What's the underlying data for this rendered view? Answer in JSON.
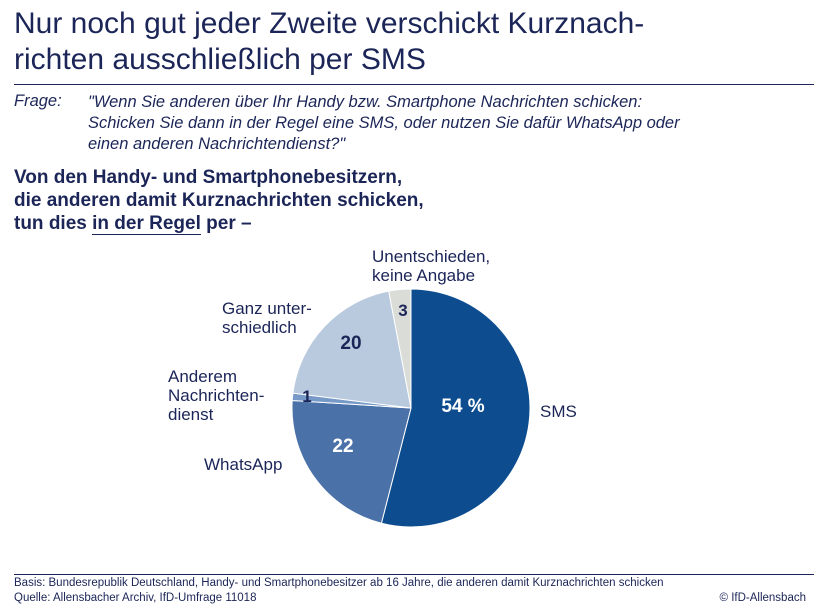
{
  "title_lines": [
    "Nur noch gut jeder Zweite verschickt Kurznach-",
    "richten ausschließlich per SMS"
  ],
  "question": {
    "label": "Frage:",
    "lines": [
      "\"Wenn Sie anderen über Ihr Handy bzw. Smartphone Nachrichten schicken:",
      "Schicken Sie dann in der Regel eine SMS, oder nutzen Sie dafür WhatsApp oder",
      "einen anderen Nachrichtendienst?\""
    ]
  },
  "subtitle": {
    "line1": "Von den Handy- und Smartphonebesitzern,",
    "line2": "die anderen damit Kurznachrichten schicken,",
    "line3_pre": "tun dies ",
    "line3_underlined": "in der Regel",
    "line3_post": " per –"
  },
  "chart_data": {
    "type": "pie",
    "unit": "%",
    "start": "top, clockwise",
    "slices": [
      {
        "label": "SMS",
        "value": 54,
        "value_label": "54 %",
        "color": "#0d4c8f",
        "text_color": "#ffffff"
      },
      {
        "label": "WhatsApp",
        "value": 22,
        "value_label": "22",
        "color": "#4a72a9",
        "text_color": "#ffffff"
      },
      {
        "label": "Anderem Nachrichten-dienst",
        "label_lines": [
          "Anderem",
          "Nachrichten-",
          "dienst"
        ],
        "value": 1,
        "value_label": "1",
        "color": "#7799c8",
        "text_color": "#1b2557"
      },
      {
        "label": "Ganz unter-schiedlich",
        "label_lines": [
          "Ganz unter-",
          "schiedlich"
        ],
        "value": 20,
        "value_label": "20",
        "color": "#b9c9de",
        "text_color": "#1b2557"
      },
      {
        "label": "Unentschieden, keine Angabe",
        "label_lines": [
          "Unentschieden,",
          "keine Angabe"
        ],
        "value": 3,
        "value_label": "3",
        "color": "#d9dcd7",
        "text_color": "#1b2557"
      }
    ]
  },
  "footer": {
    "basis": "Basis: Bundesrepublik Deutschland, Handy- und Smartphonebesitzer ab 16 Jahre, die anderen damit Kurznachrichten schicken",
    "source": "Quelle: Allensbacher Archiv, IfD-Umfrage 11018",
    "copyright": "© IfD-Allensbach"
  }
}
